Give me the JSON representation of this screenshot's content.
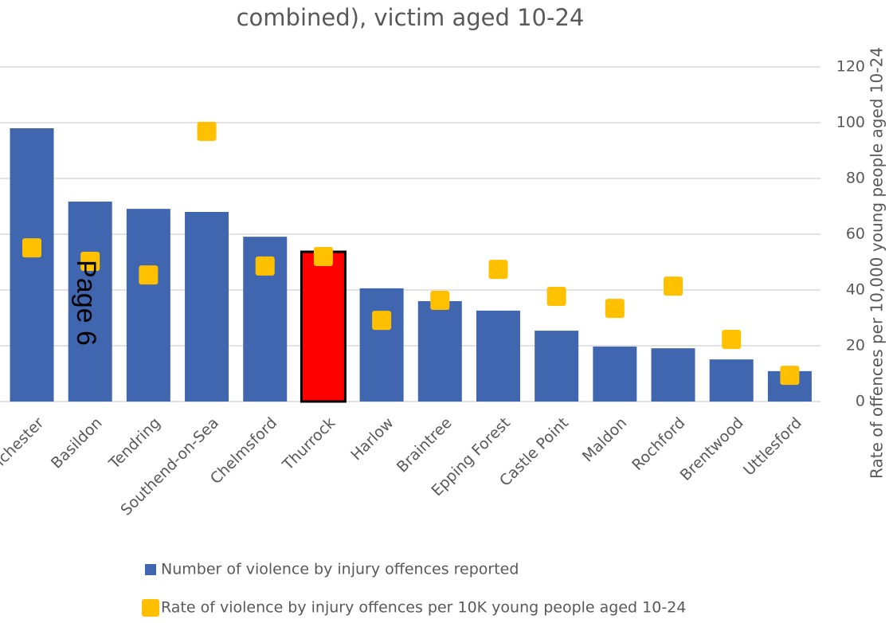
{
  "chart_data": {
    "type": "bar_scatter",
    "title": "combined), victim aged 10-24",
    "y2label": "Rate of offences per 10,000 young people aged 10-24",
    "categories": [
      "Colchester",
      "Basildon",
      "Tendring",
      "Southend-on-Sea",
      "Chelmsford",
      "Thurrock",
      "Harlow",
      "Braintree",
      "Epping Forest",
      "Castle Point",
      "Maldon",
      "Rochford",
      "Brentwood",
      "Uttlesford"
    ],
    "series": [
      {
        "name": "Number of violence by injury offences reported",
        "type": "bar",
        "axis": "y2",
        "color": "#4066b0",
        "colors": [
          "#4066b0",
          "#4066b0",
          "#4066b0",
          "#4066b0",
          "#4066b0",
          "#ff0000",
          "#4066b0",
          "#4066b0",
          "#4066b0",
          "#4066b0",
          "#4066b0",
          "#4066b0",
          "#4066b0",
          "#4066b0"
        ],
        "values": [
          98,
          71.7,
          69.1,
          68,
          59.1,
          53.7,
          40.6,
          36,
          32.6,
          25.4,
          19.7,
          19.1,
          15.1,
          10.9
        ]
      },
      {
        "name": "Rate of violence by injury offences per 10K young people aged 10-24",
        "type": "scatter",
        "axis": "y2",
        "color": "#ffc000",
        "values": [
          55.1,
          50.3,
          45.4,
          96.9,
          48.6,
          52,
          29.1,
          36.3,
          47.4,
          37.7,
          33.4,
          41.4,
          22.3,
          9.4
        ]
      }
    ],
    "y2lim": [
      0,
      120
    ],
    "y2ticks": [
      0,
      20,
      40,
      60,
      80,
      100,
      120
    ],
    "grid": true
  },
  "page_label": "Page 6"
}
